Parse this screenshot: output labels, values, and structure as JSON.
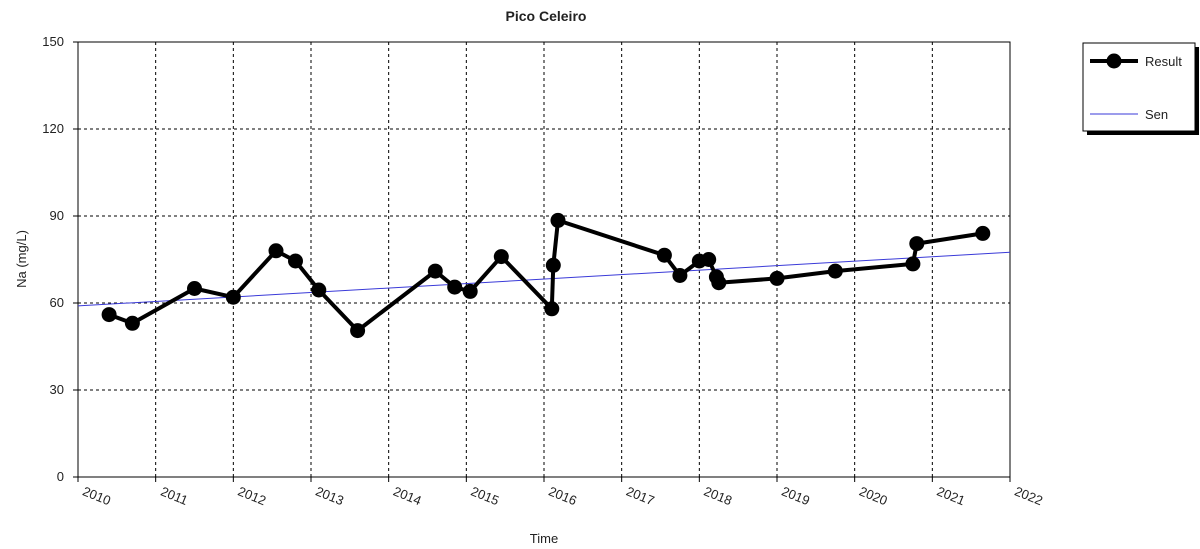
{
  "chart_data": {
    "type": "line",
    "title": "Pico Celeiro",
    "xlabel": "Time",
    "ylabel": "Na (mg/L)",
    "xlim": [
      2010,
      2022
    ],
    "ylim": [
      0,
      150
    ],
    "x_ticks": [
      "2010",
      "2011",
      "2012",
      "2013",
      "2014",
      "2015",
      "2016",
      "2017",
      "2018",
      "2019",
      "2020",
      "2021",
      "2022"
    ],
    "y_ticks": [
      "0",
      "30",
      "60",
      "90",
      "120",
      "150"
    ],
    "grid": true,
    "legend_position": "right",
    "series": [
      {
        "name": "Result",
        "color": "#000000",
        "marker": "circle",
        "points": [
          [
            2010.4,
            56
          ],
          [
            2010.7,
            53
          ],
          [
            2011.5,
            65
          ],
          [
            2012.0,
            62
          ],
          [
            2012.55,
            78
          ],
          [
            2012.8,
            74.5
          ],
          [
            2013.1,
            64.5
          ],
          [
            2013.6,
            50.5
          ],
          [
            2014.6,
            71
          ],
          [
            2014.85,
            65.5
          ],
          [
            2015.05,
            64
          ],
          [
            2015.45,
            76
          ],
          [
            2016.1,
            58
          ],
          [
            2016.12,
            73
          ],
          [
            2016.18,
            88.5
          ],
          [
            2017.55,
            76.5
          ],
          [
            2017.75,
            69.5
          ],
          [
            2018.0,
            74.5
          ],
          [
            2018.12,
            75
          ],
          [
            2018.22,
            69
          ],
          [
            2018.25,
            67
          ],
          [
            2019.0,
            68.5
          ],
          [
            2019.75,
            71
          ],
          [
            2020.75,
            73.5
          ],
          [
            2020.8,
            80.5
          ],
          [
            2021.65,
            84
          ]
        ]
      },
      {
        "name": "Sen",
        "color": "#3a3ad8",
        "marker": "none",
        "points": [
          [
            2010.0,
            59
          ],
          [
            2022.0,
            77.5
          ]
        ]
      }
    ]
  }
}
